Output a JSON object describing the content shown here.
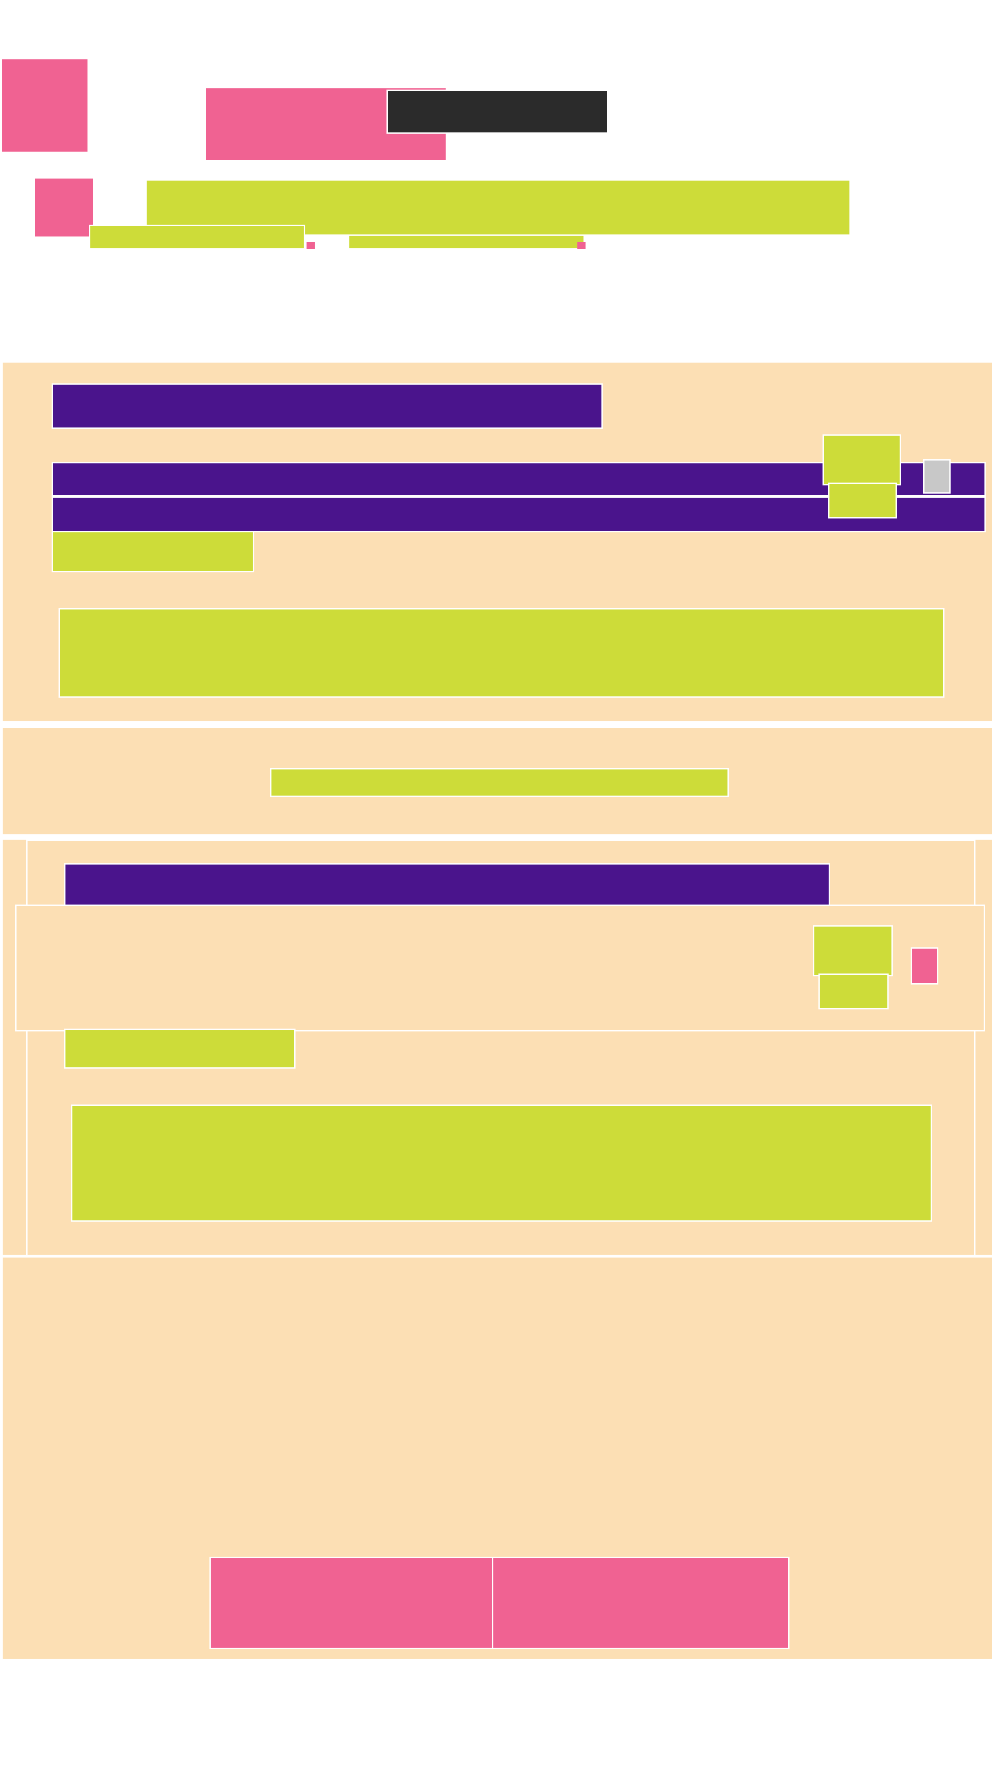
{
  "theme": {
    "background": "#ffffff",
    "panel": "#fcdfb4",
    "accent_pink": "#f06292",
    "accent_lime": "#cddc39",
    "accent_purple": "#4a148c",
    "dark_bar": "#2b2b2b",
    "gray_toggle": "#c8c8c8"
  },
  "header": {
    "logo_icon": "app-logo-icon",
    "title_block": "",
    "title_text": ""
  },
  "account": {
    "avatar_icon": "avatar-icon",
    "name": "",
    "links": [
      "",
      ""
    ]
  },
  "panel1": {
    "heading": "",
    "row_line_1": "",
    "row_line_2": "",
    "meta": "",
    "badge_top": "",
    "badge_bottom": "",
    "toggle_icon": "toggle-icon",
    "content": ""
  },
  "banner": {
    "text": ""
  },
  "panel2": {
    "heading": "",
    "badge_top": "",
    "badge_bottom": "",
    "flag_icon": "flag-icon",
    "meta": "",
    "content": ""
  },
  "footer": {
    "buttons": [
      "",
      ""
    ]
  }
}
